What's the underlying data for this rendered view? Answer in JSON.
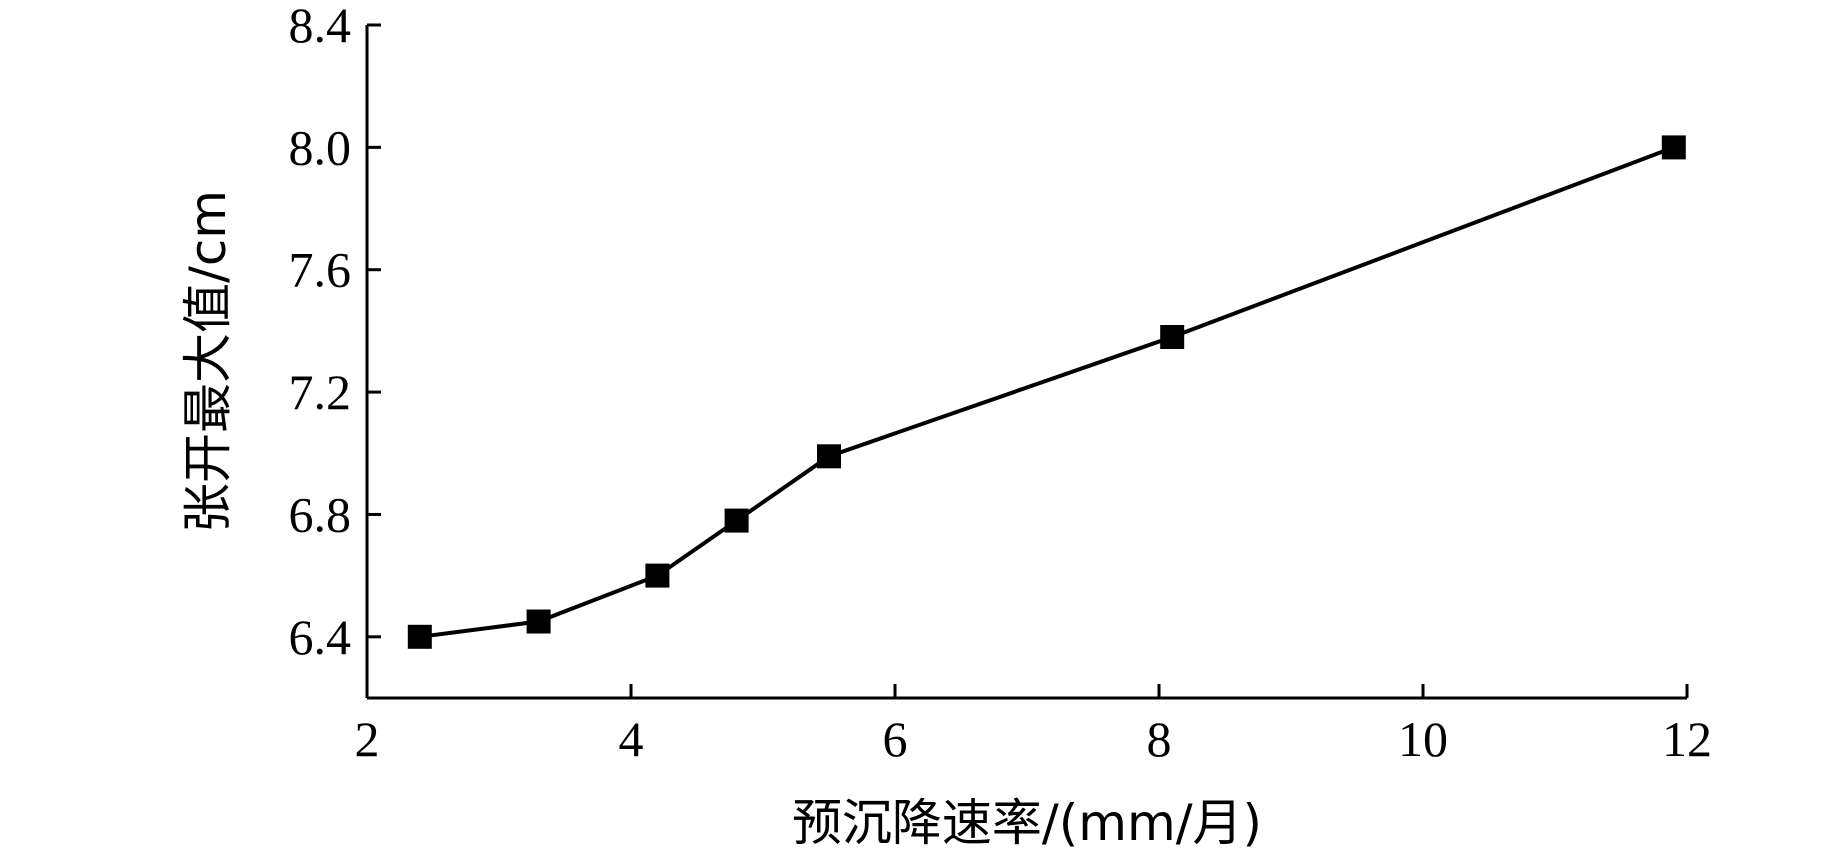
{
  "chart_data": {
    "type": "line",
    "xlabel": "预沉降速率/(mm/月)",
    "ylabel": "张开最大值/cm",
    "xlim": [
      2,
      12
    ],
    "ylim": [
      6.2,
      8.4
    ],
    "xticks": [
      2,
      4,
      6,
      8,
      10,
      12
    ],
    "xtick_labels": [
      "2",
      "4",
      "6",
      "8",
      "10",
      "12"
    ],
    "yticks": [
      6.4,
      6.8,
      7.2,
      7.6,
      8.0,
      8.4
    ],
    "ytick_labels": [
      "6.4",
      "6.8",
      "7.2",
      "7.6",
      "8.0",
      "8.4"
    ],
    "grid": false,
    "series": [
      {
        "marker": "square",
        "color": "#000000",
        "x": [
          2.4,
          3.3,
          4.2,
          4.8,
          5.5,
          8.1,
          11.9
        ],
        "y": [
          6.4,
          6.45,
          6.6,
          6.78,
          6.99,
          7.38,
          8.0
        ]
      }
    ]
  }
}
